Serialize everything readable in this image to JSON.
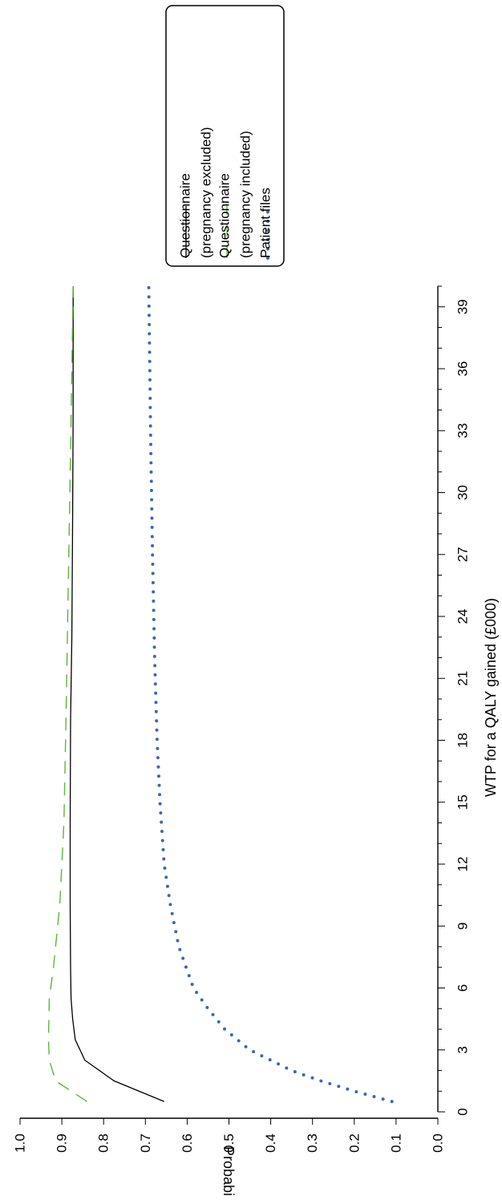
{
  "chart_data": {
    "type": "line",
    "orientation": "rotated-90-clockwise",
    "title": "",
    "xlabel": "WTP for a QALY gained (£000)",
    "ylabel": "Probability",
    "xlim": [
      0,
      40
    ],
    "ylim": [
      0.0,
      1.0
    ],
    "x_ticks": [
      0,
      3,
      6,
      9,
      12,
      15,
      18,
      21,
      24,
      27,
      30,
      33,
      36,
      39
    ],
    "y_ticks": [
      "0.0",
      "0.1",
      "0.2",
      "0.3",
      "0.4",
      "0.5",
      "0.6",
      "0.7",
      "0.8",
      "0.9",
      "1.0"
    ],
    "grid": false,
    "legend_position": "top-right",
    "series": [
      {
        "name": "Questionnaire (pregnancy excluded)",
        "legend_lines": [
          "Questionnaire",
          "(pregnancy excluded)"
        ],
        "style": "solid",
        "color": "#000000",
        "x": [
          0.5,
          1.5,
          2.5,
          3.5,
          4.5,
          5.5,
          7,
          10,
          14,
          19,
          23,
          29,
          34,
          40
        ],
        "y": [
          0.655,
          0.775,
          0.845,
          0.868,
          0.874,
          0.878,
          0.879,
          0.88,
          0.88,
          0.879,
          0.876,
          0.874,
          0.873,
          0.873
        ]
      },
      {
        "name": "Questionnaire (pregnancy included)",
        "legend_lines": [
          "Questionnaire",
          "(pregnancy included)"
        ],
        "style": "dashed",
        "color": "#5db53a",
        "x": [
          0.5,
          1.5,
          2.5,
          3.5,
          5.5,
          7,
          10,
          14,
          19,
          25,
          32,
          40
        ],
        "y": [
          0.84,
          0.915,
          0.93,
          0.932,
          0.93,
          0.92,
          0.905,
          0.895,
          0.89,
          0.885,
          0.879,
          0.873
        ]
      },
      {
        "name": "Patient files",
        "legend_lines": [
          "Patient files"
        ],
        "style": "dotted",
        "color": "#3a68b0",
        "x": [
          0.5,
          1,
          1.5,
          2,
          2.5,
          3,
          3.5,
          4,
          5,
          6,
          8,
          10,
          12,
          15,
          18,
          22,
          27,
          32,
          40
        ],
        "y": [
          0.11,
          0.2,
          0.28,
          0.35,
          0.4,
          0.45,
          0.48,
          0.51,
          0.55,
          0.585,
          0.62,
          0.64,
          0.655,
          0.665,
          0.672,
          0.678,
          0.683,
          0.687,
          0.692
        ]
      }
    ]
  }
}
